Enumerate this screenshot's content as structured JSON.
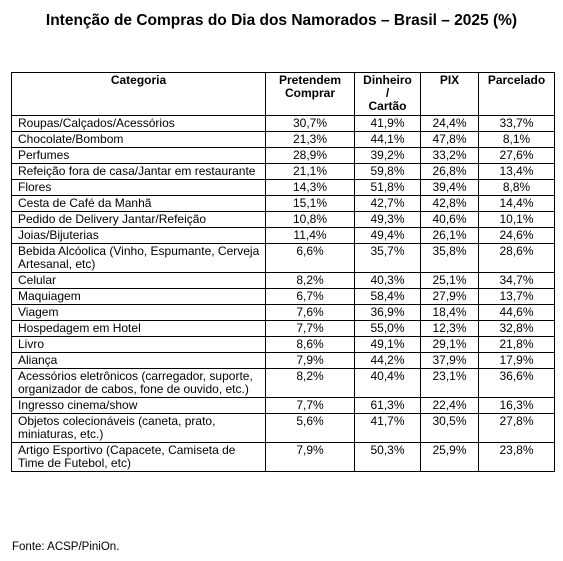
{
  "title": "Intenção de Compras do Dia dos Namorados – Brasil – 2025 (%)",
  "headers": {
    "categoria": "Categoria",
    "pretendem": "Pretendem\nComprar",
    "dinheiro": "Dinheiro\n/\nCartão",
    "pix": "PIX",
    "parcelado": "Parcelado"
  },
  "rows": [
    {
      "categoria": "Roupas/Calçados/Acessórios",
      "pretendem": "30,7%",
      "dinheiro": "41,9%",
      "pix": "24,4%",
      "parcelado": "33,7%"
    },
    {
      "categoria": "Chocolate/Bombom",
      "pretendem": "21,3%",
      "dinheiro": "44,1%",
      "pix": "47,8%",
      "parcelado": "8,1%"
    },
    {
      "categoria": "Perfumes",
      "pretendem": "28,9%",
      "dinheiro": "39,2%",
      "pix": "33,2%",
      "parcelado": "27,6%"
    },
    {
      "categoria": "Refeição fora de casa/Jantar em restaurante",
      "pretendem": "21,1%",
      "dinheiro": "59,8%",
      "pix": "26,8%",
      "parcelado": "13,4%"
    },
    {
      "categoria": "Flores",
      "pretendem": "14,3%",
      "dinheiro": "51,8%",
      "pix": "39,4%",
      "parcelado": "8,8%"
    },
    {
      "categoria": "Cesta de Café da Manhã",
      "pretendem": "15,1%",
      "dinheiro": "42,7%",
      "pix": "42,8%",
      "parcelado": "14,4%"
    },
    {
      "categoria": "Pedido de Delivery Jantar/Refeição",
      "pretendem": "10,8%",
      "dinheiro": "49,3%",
      "pix": "40,6%",
      "parcelado": "10,1%"
    },
    {
      "categoria": "Joias/Bijuterias",
      "pretendem": "11,4%",
      "dinheiro": "49,4%",
      "pix": "26,1%",
      "parcelado": "24,6%"
    },
    {
      "categoria": "Bebida Alcóolica (Vinho, Espumante, Cerveja Artesanal, etc)",
      "pretendem": "6,6%",
      "dinheiro": "35,7%",
      "pix": "35,8%",
      "parcelado": "28,6%"
    },
    {
      "categoria": "Celular",
      "pretendem": "8,2%",
      "dinheiro": "40,3%",
      "pix": "25,1%",
      "parcelado": "34,7%"
    },
    {
      "categoria": "Maquiagem",
      "pretendem": "6,7%",
      "dinheiro": "58,4%",
      "pix": "27,9%",
      "parcelado": "13,7%"
    },
    {
      "categoria": "Viagem",
      "pretendem": "7,6%",
      "dinheiro": "36,9%",
      "pix": "18,4%",
      "parcelado": "44,6%"
    },
    {
      "categoria": "Hospedagem em Hotel",
      "pretendem": "7,7%",
      "dinheiro": "55,0%",
      "pix": "12,3%",
      "parcelado": "32,8%"
    },
    {
      "categoria": "Livro",
      "pretendem": "8,6%",
      "dinheiro": "49,1%",
      "pix": "29,1%",
      "parcelado": "21,8%"
    },
    {
      "categoria": "Aliança",
      "pretendem": "7,9%",
      "dinheiro": "44,2%",
      "pix": "37,9%",
      "parcelado": "17,9%"
    },
    {
      "categoria": "Acessórios eletrônicos (carregador, suporte, organizador de cabos, fone de ouvido, etc.)",
      "pretendem": "8,2%",
      "dinheiro": "40,4%",
      "pix": "23,1%",
      "parcelado": "36,6%"
    },
    {
      "categoria": "Ingresso cinema/show",
      "pretendem": "7,7%",
      "dinheiro": "61,3%",
      "pix": "22,4%",
      "parcelado": "16,3%"
    },
    {
      "categoria": "Objetos colecionáveis (caneta, prato, miniaturas, etc.)",
      "pretendem": "5,6%",
      "dinheiro": "41,7%",
      "pix": "30,5%",
      "parcelado": "27,8%"
    },
    {
      "categoria": "Artigo Esportivo (Capacete, Camiseta de Time de Futebol, etc)",
      "pretendem": "7,9%",
      "dinheiro": "50,3%",
      "pix": "25,9%",
      "parcelado": "23,8%"
    }
  ],
  "source": "Fonte: ACSP/PiniOn."
}
